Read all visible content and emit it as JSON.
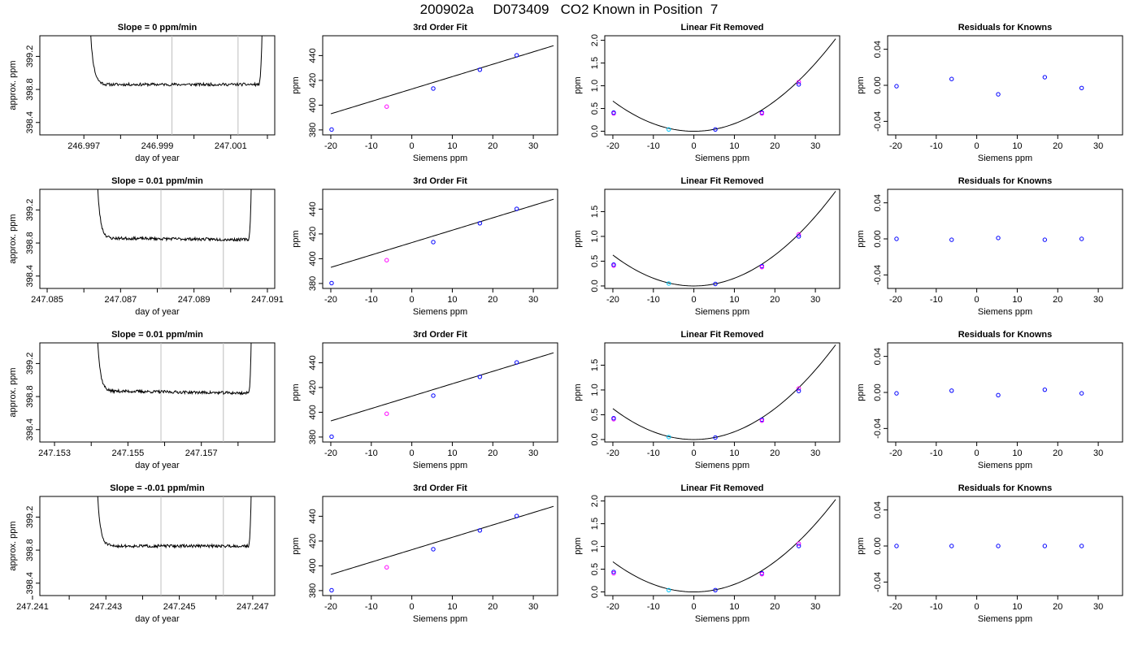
{
  "title": "200902a     D073409   CO2 Known in Position  7",
  "colors": {
    "axis": "#000000",
    "trace": "#000000",
    "fit": "#000000",
    "vline": "#bebebe",
    "pt_blue": "#0000ff",
    "pt_magenta": "#ff00ff",
    "pt_cyan": "#00c8ff",
    "pt_red": "#ff0000"
  },
  "chart_data": [
    {
      "type": "line",
      "panel": "time",
      "row": 0,
      "title": "Slope =  0  ppm/min",
      "xlabel": "day of year",
      "ylabel": "approx. ppm",
      "xlim": [
        246.9958,
        247.0022
      ],
      "ylim": [
        398.25,
        399.45
      ],
      "xticks": [
        246.997,
        246.998,
        246.999,
        247.0,
        247.001,
        247.002
      ],
      "xtick_labels": [
        "246.997",
        "",
        "246.999",
        "",
        "247.001",
        ""
      ],
      "yticks": [
        398.4,
        398.8,
        399.2
      ],
      "ytick_labels": [
        "398.4",
        "398.8",
        "399.2"
      ],
      "vlines": [
        246.9994,
        247.0012
      ],
      "trace": {
        "x0": 246.9971,
        "x1": 247.0019,
        "plateau": 398.86,
        "spike_left": 0.1,
        "spike_right": 0.03,
        "seed": 11,
        "drift": 0.0
      }
    },
    {
      "type": "scatter",
      "panel": "fit",
      "row": 0,
      "title": "3rd Order Fit",
      "xlabel": "Siemens ppm",
      "ylabel": "ppm",
      "xlim": [
        -22,
        36
      ],
      "ylim": [
        376,
        456
      ],
      "xticks": [
        -20,
        -10,
        0,
        10,
        20,
        30
      ],
      "xtick_labels": [
        "-20",
        "-10",
        "0",
        "10",
        "20",
        "30"
      ],
      "yticks": [
        380,
        400,
        420,
        440
      ],
      "ytick_labels": [
        "380",
        "400",
        "420",
        "440"
      ],
      "curve": {
        "a": 413.0,
        "b": 1.0,
        "c": 0.0,
        "x0": -20,
        "x1": 35
      },
      "points": [
        {
          "x": -19.8,
          "y": 380.3,
          "color": "blue"
        },
        {
          "x": -6.2,
          "y": 398.8,
          "color": "magenta"
        },
        {
          "x": 5.3,
          "y": 413.4,
          "color": "blue"
        },
        {
          "x": 16.8,
          "y": 428.6,
          "color": "blue"
        },
        {
          "x": 25.9,
          "y": 440.2,
          "color": "blue"
        }
      ]
    },
    {
      "type": "scatter",
      "panel": "fit",
      "row": 0,
      "title": "Linear Fit Removed",
      "xlabel": "Siemens ppm",
      "ylabel": "ppm",
      "xlim": [
        -22,
        36
      ],
      "ylim": [
        -0.08,
        2.1
      ],
      "xticks": [
        -20,
        -10,
        0,
        10,
        20,
        30
      ],
      "xtick_labels": [
        "-20",
        "-10",
        "0",
        "10",
        "20",
        "30"
      ],
      "yticks": [
        0.0,
        0.5,
        1.0,
        1.5,
        2.0
      ],
      "ytick_labels": [
        "0.0",
        "0.5",
        "1.0",
        "1.5",
        "2.0"
      ],
      "curve": {
        "a": 0.0,
        "b": 0.0,
        "c": 0.00166,
        "x0": -20,
        "x1": 35
      },
      "points": [
        {
          "x": -19.8,
          "y": 0.39,
          "color": "magenta"
        },
        {
          "x": -19.8,
          "y": 0.41,
          "color": "blue"
        },
        {
          "x": -6.2,
          "y": 0.04,
          "color": "cyan"
        },
        {
          "x": 5.3,
          "y": 0.04,
          "color": "blue"
        },
        {
          "x": 16.8,
          "y": 0.41,
          "color": "blue"
        },
        {
          "x": 16.8,
          "y": 0.39,
          "color": "magenta"
        },
        {
          "x": 25.9,
          "y": 1.08,
          "color": "magenta"
        },
        {
          "x": 25.9,
          "y": 1.03,
          "color": "blue"
        }
      ]
    },
    {
      "type": "scatter",
      "panel": "resid",
      "row": 0,
      "title": "Residuals for Knowns",
      "xlabel": "Siemens ppm",
      "ylabel": "ppm",
      "xlim": [
        -22,
        36
      ],
      "ylim": [
        -0.055,
        0.055
      ],
      "xticks": [
        -20,
        -10,
        0,
        10,
        20,
        30
      ],
      "xtick_labels": [
        "-20",
        "-10",
        "0",
        "10",
        "20",
        "30"
      ],
      "yticks": [
        -0.04,
        0.0,
        0.04
      ],
      "ytick_labels": [
        "-0.04",
        "0.00",
        "0.04"
      ],
      "points": [
        {
          "x": -19.8,
          "y": -0.001,
          "color": "blue"
        },
        {
          "x": -6.2,
          "y": 0.007,
          "color": "blue"
        },
        {
          "x": 5.3,
          "y": -0.01,
          "color": "blue"
        },
        {
          "x": 16.8,
          "y": 0.009,
          "color": "blue"
        },
        {
          "x": 25.9,
          "y": -0.003,
          "color": "blue"
        }
      ]
    },
    {
      "type": "line",
      "panel": "time",
      "row": 1,
      "title": "Slope =  0.01  ppm/min",
      "xlabel": "day of year",
      "ylabel": "approx. ppm",
      "xlim": [
        247.0848,
        247.0912
      ],
      "ylim": [
        398.25,
        399.45
      ],
      "xticks": [
        247.085,
        247.086,
        247.087,
        247.088,
        247.089,
        247.09,
        247.091
      ],
      "xtick_labels": [
        "247.085",
        "",
        "247.087",
        "",
        "247.089",
        "",
        "247.091"
      ],
      "yticks": [
        398.4,
        398.8,
        399.2
      ],
      "ytick_labels": [
        "398.4",
        "398.8",
        "399.2"
      ],
      "vlines": [
        247.0881,
        247.0898
      ],
      "trace": {
        "x0": 247.0863,
        "x1": 247.0906,
        "plateau": 398.86,
        "spike_left": 0.1,
        "spike_right": 0.03,
        "seed": 23,
        "drift": -0.02
      }
    },
    {
      "type": "scatter",
      "panel": "fit",
      "row": 1,
      "title": "3rd Order Fit",
      "xlabel": "Siemens ppm",
      "ylabel": "ppm",
      "xlim": [
        -22,
        36
      ],
      "ylim": [
        376,
        456
      ],
      "xticks": [
        -20,
        -10,
        0,
        10,
        20,
        30
      ],
      "xtick_labels": [
        "-20",
        "-10",
        "0",
        "10",
        "20",
        "30"
      ],
      "yticks": [
        380,
        400,
        420,
        440
      ],
      "ytick_labels": [
        "380",
        "400",
        "420",
        "440"
      ],
      "curve": {
        "a": 413.0,
        "b": 1.0,
        "c": 0.0,
        "x0": -20,
        "x1": 35
      },
      "points": [
        {
          "x": -19.8,
          "y": 380.3,
          "color": "blue"
        },
        {
          "x": -6.2,
          "y": 398.8,
          "color": "magenta"
        },
        {
          "x": 5.3,
          "y": 413.4,
          "color": "blue"
        },
        {
          "x": 16.8,
          "y": 428.6,
          "color": "blue"
        },
        {
          "x": 25.9,
          "y": 440.2,
          "color": "blue"
        }
      ]
    },
    {
      "type": "scatter",
      "panel": "fit",
      "row": 1,
      "title": "Linear Fit Removed",
      "xlabel": "Siemens ppm",
      "ylabel": "ppm",
      "xlim": [
        -22,
        36
      ],
      "ylim": [
        -0.05,
        1.95
      ],
      "xticks": [
        -20,
        -10,
        0,
        10,
        20,
        30
      ],
      "xtick_labels": [
        "-20",
        "-10",
        "0",
        "10",
        "20",
        "30"
      ],
      "yticks": [
        0.0,
        0.5,
        1.0,
        1.5
      ],
      "ytick_labels": [
        "0.0",
        "0.5",
        "1.0",
        "1.5"
      ],
      "curve": {
        "a": 0.0,
        "b": 0.0,
        "c": 0.00156,
        "x0": -20,
        "x1": 35
      },
      "points": [
        {
          "x": -19.8,
          "y": 0.41,
          "color": "magenta"
        },
        {
          "x": -19.8,
          "y": 0.43,
          "color": "blue"
        },
        {
          "x": -6.2,
          "y": 0.05,
          "color": "cyan"
        },
        {
          "x": 5.3,
          "y": 0.04,
          "color": "blue"
        },
        {
          "x": 16.8,
          "y": 0.4,
          "color": "blue"
        },
        {
          "x": 16.8,
          "y": 0.38,
          "color": "magenta"
        },
        {
          "x": 25.9,
          "y": 1.04,
          "color": "magenta"
        },
        {
          "x": 25.9,
          "y": 1.0,
          "color": "blue"
        }
      ]
    },
    {
      "type": "scatter",
      "panel": "resid",
      "row": 1,
      "title": "Residuals for Knowns",
      "xlabel": "Siemens ppm",
      "ylabel": "ppm",
      "xlim": [
        -22,
        36
      ],
      "ylim": [
        -0.055,
        0.055
      ],
      "xticks": [
        -20,
        -10,
        0,
        10,
        20,
        30
      ],
      "xtick_labels": [
        "-20",
        "-10",
        "0",
        "10",
        "20",
        "30"
      ],
      "yticks": [
        -0.04,
        0.0,
        0.04
      ],
      "ytick_labels": [
        "-0.04",
        "0.00",
        "0.04"
      ],
      "points": [
        {
          "x": -19.8,
          "y": 0.0,
          "color": "blue"
        },
        {
          "x": -6.2,
          "y": -0.001,
          "color": "blue"
        },
        {
          "x": 5.3,
          "y": 0.001,
          "color": "blue"
        },
        {
          "x": 16.8,
          "y": -0.001,
          "color": "blue"
        },
        {
          "x": 25.9,
          "y": 0.0,
          "color": "blue"
        }
      ]
    },
    {
      "type": "line",
      "panel": "time",
      "row": 2,
      "title": "Slope =  0.01  ppm/min",
      "xlabel": "day of year",
      "ylabel": "approx. ppm",
      "xlim": [
        247.1526,
        247.159
      ],
      "ylim": [
        398.25,
        399.45
      ],
      "xticks": [
        247.153,
        247.154,
        247.155,
        247.156,
        247.157,
        247.158
      ],
      "xtick_labels": [
        "247.153",
        "",
        "247.155",
        "",
        "247.157",
        ""
      ],
      "yticks": [
        398.4,
        398.8,
        399.2
      ],
      "ytick_labels": [
        "398.4",
        "398.8",
        "399.2"
      ],
      "vlines": [
        247.1559,
        247.1576
      ],
      "trace": {
        "x0": 247.1541,
        "x1": 247.1584,
        "plateau": 398.87,
        "spike_left": 0.1,
        "spike_right": 0.03,
        "seed": 37,
        "drift": -0.03
      }
    },
    {
      "type": "scatter",
      "panel": "fit",
      "row": 2,
      "title": "3rd Order Fit",
      "xlabel": "Siemens ppm",
      "ylabel": "ppm",
      "xlim": [
        -22,
        36
      ],
      "ylim": [
        376,
        456
      ],
      "xticks": [
        -20,
        -10,
        0,
        10,
        20,
        30
      ],
      "xtick_labels": [
        "-20",
        "-10",
        "0",
        "10",
        "20",
        "30"
      ],
      "yticks": [
        380,
        400,
        420,
        440
      ],
      "ytick_labels": [
        "380",
        "400",
        "420",
        "440"
      ],
      "curve": {
        "a": 413.0,
        "b": 1.0,
        "c": 0.0,
        "x0": -20,
        "x1": 35
      },
      "points": [
        {
          "x": -19.8,
          "y": 380.3,
          "color": "blue"
        },
        {
          "x": -6.2,
          "y": 398.8,
          "color": "magenta"
        },
        {
          "x": 5.3,
          "y": 413.4,
          "color": "blue"
        },
        {
          "x": 16.8,
          "y": 428.6,
          "color": "blue"
        },
        {
          "x": 25.9,
          "y": 440.2,
          "color": "blue"
        }
      ]
    },
    {
      "type": "scatter",
      "panel": "fit",
      "row": 2,
      "title": "Linear Fit Removed",
      "xlabel": "Siemens ppm",
      "ylabel": "ppm",
      "xlim": [
        -22,
        36
      ],
      "ylim": [
        -0.05,
        1.95
      ],
      "xticks": [
        -20,
        -10,
        0,
        10,
        20,
        30
      ],
      "xtick_labels": [
        "-20",
        "-10",
        "0",
        "10",
        "20",
        "30"
      ],
      "yticks": [
        0.0,
        0.5,
        1.0,
        1.5
      ],
      "ytick_labels": [
        "0.0",
        "0.5",
        "1.0",
        "1.5"
      ],
      "curve": {
        "a": 0.0,
        "b": 0.0,
        "c": 0.00156,
        "x0": -20,
        "x1": 35
      },
      "points": [
        {
          "x": -19.8,
          "y": 0.41,
          "color": "magenta"
        },
        {
          "x": -19.8,
          "y": 0.43,
          "color": "blue"
        },
        {
          "x": -6.2,
          "y": 0.05,
          "color": "cyan"
        },
        {
          "x": 5.3,
          "y": 0.04,
          "color": "blue"
        },
        {
          "x": 16.8,
          "y": 0.4,
          "color": "blue"
        },
        {
          "x": 16.8,
          "y": 0.38,
          "color": "magenta"
        },
        {
          "x": 25.9,
          "y": 1.03,
          "color": "magenta"
        },
        {
          "x": 25.9,
          "y": 0.98,
          "color": "blue"
        }
      ]
    },
    {
      "type": "scatter",
      "panel": "resid",
      "row": 2,
      "title": "Residuals for Knowns",
      "xlabel": "Siemens ppm",
      "ylabel": "ppm",
      "xlim": [
        -22,
        36
      ],
      "ylim": [
        -0.055,
        0.055
      ],
      "xticks": [
        -20,
        -10,
        0,
        10,
        20,
        30
      ],
      "xtick_labels": [
        "-20",
        "-10",
        "0",
        "10",
        "20",
        "30"
      ],
      "yticks": [
        -0.04,
        0.0,
        0.04
      ],
      "ytick_labels": [
        "-0.04",
        "0.00",
        "0.04"
      ],
      "points": [
        {
          "x": -19.8,
          "y": -0.001,
          "color": "blue"
        },
        {
          "x": -6.2,
          "y": 0.002,
          "color": "blue"
        },
        {
          "x": 5.3,
          "y": -0.003,
          "color": "blue"
        },
        {
          "x": 16.8,
          "y": 0.003,
          "color": "blue"
        },
        {
          "x": 25.9,
          "y": -0.001,
          "color": "blue"
        }
      ]
    },
    {
      "type": "line",
      "panel": "time",
      "row": 3,
      "title": "Slope =  -0.01  ppm/min",
      "xlabel": "day of year",
      "ylabel": "approx. ppm",
      "xlim": [
        247.2412,
        247.2476
      ],
      "ylim": [
        398.25,
        399.45
      ],
      "xticks": [
        247.241,
        247.242,
        247.243,
        247.244,
        247.245,
        247.246,
        247.247
      ],
      "xtick_labels": [
        "247.241",
        "",
        "247.243",
        "",
        "247.245",
        "",
        "247.247"
      ],
      "yticks": [
        398.4,
        398.8,
        399.2
      ],
      "ytick_labels": [
        "398.4",
        "398.8",
        "399.2"
      ],
      "vlines": [
        247.2445,
        247.2462
      ],
      "trace": {
        "x0": 247.2427,
        "x1": 247.247,
        "plateau": 398.85,
        "spike_left": 0.1,
        "spike_right": 0.03,
        "seed": 51,
        "drift": 0.0
      }
    },
    {
      "type": "scatter",
      "panel": "fit",
      "row": 3,
      "title": "3rd Order Fit",
      "xlabel": "Siemens ppm",
      "ylabel": "ppm",
      "xlim": [
        -22,
        36
      ],
      "ylim": [
        376,
        456
      ],
      "xticks": [
        -20,
        -10,
        0,
        10,
        20,
        30
      ],
      "xtick_labels": [
        "-20",
        "-10",
        "0",
        "10",
        "20",
        "30"
      ],
      "yticks": [
        380,
        400,
        420,
        440
      ],
      "ytick_labels": [
        "380",
        "400",
        "420",
        "440"
      ],
      "curve": {
        "a": 413.0,
        "b": 1.0,
        "c": 0.0,
        "x0": -20,
        "x1": 35
      },
      "points": [
        {
          "x": -19.8,
          "y": 380.3,
          "color": "blue"
        },
        {
          "x": -6.2,
          "y": 398.8,
          "color": "magenta"
        },
        {
          "x": 5.3,
          "y": 413.4,
          "color": "blue"
        },
        {
          "x": 16.8,
          "y": 428.6,
          "color": "blue"
        },
        {
          "x": 25.9,
          "y": 440.2,
          "color": "blue"
        }
      ]
    },
    {
      "type": "scatter",
      "panel": "fit",
      "row": 3,
      "title": "Linear Fit Removed",
      "xlabel": "Siemens ppm",
      "ylabel": "ppm",
      "xlim": [
        -22,
        36
      ],
      "ylim": [
        -0.08,
        2.1
      ],
      "xticks": [
        -20,
        -10,
        0,
        10,
        20,
        30
      ],
      "xtick_labels": [
        "-20",
        "-10",
        "0",
        "10",
        "20",
        "30"
      ],
      "yticks": [
        0.0,
        0.5,
        1.0,
        1.5,
        2.0
      ],
      "ytick_labels": [
        "0.0",
        "0.5",
        "1.0",
        "1.5",
        "2.0"
      ],
      "curve": {
        "a": 0.0,
        "b": 0.0,
        "c": 0.00166,
        "x0": -20,
        "x1": 35
      },
      "points": [
        {
          "x": -19.8,
          "y": 0.41,
          "color": "magenta"
        },
        {
          "x": -19.8,
          "y": 0.44,
          "color": "blue"
        },
        {
          "x": -6.2,
          "y": 0.04,
          "color": "cyan"
        },
        {
          "x": 5.3,
          "y": 0.04,
          "color": "blue"
        },
        {
          "x": 16.8,
          "y": 0.41,
          "color": "blue"
        },
        {
          "x": 16.8,
          "y": 0.39,
          "color": "magenta"
        },
        {
          "x": 25.9,
          "y": 1.06,
          "color": "magenta"
        },
        {
          "x": 25.9,
          "y": 1.01,
          "color": "blue"
        }
      ]
    },
    {
      "type": "scatter",
      "panel": "resid",
      "row": 3,
      "title": "Residuals for Knowns",
      "xlabel": "Siemens ppm",
      "ylabel": "ppm",
      "xlim": [
        -22,
        36
      ],
      "ylim": [
        -0.055,
        0.055
      ],
      "xticks": [
        -20,
        -10,
        0,
        10,
        20,
        30
      ],
      "xtick_labels": [
        "-20",
        "-10",
        "0",
        "10",
        "20",
        "30"
      ],
      "yticks": [
        -0.04,
        0.0,
        0.04
      ],
      "ytick_labels": [
        "-0.04",
        "0.00",
        "0.04"
      ],
      "points": [
        {
          "x": -19.8,
          "y": 0.0,
          "color": "blue"
        },
        {
          "x": -6.2,
          "y": 0.0,
          "color": "blue"
        },
        {
          "x": 5.3,
          "y": 0.0,
          "color": "blue"
        },
        {
          "x": 16.8,
          "y": 0.0,
          "color": "blue"
        },
        {
          "x": 25.9,
          "y": 0.0,
          "color": "blue"
        }
      ]
    }
  ]
}
